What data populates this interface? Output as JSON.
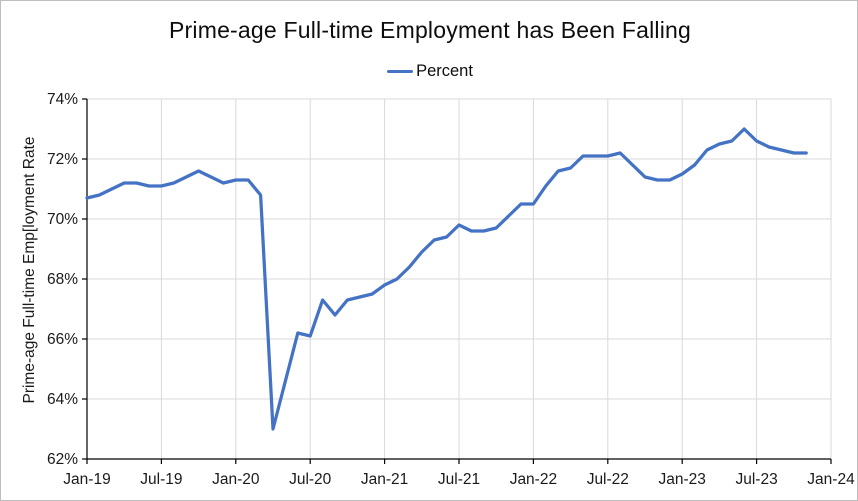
{
  "chart": {
    "title": "Prime-age Full-time Employment has Been Falling",
    "legend_label": "Percent"
  },
  "chart_data": {
    "type": "line",
    "title": "Prime-age Full-time Employment has Been Falling",
    "ylabel": "Prime-age Full-time Emp[loyment Rate",
    "xlabel": "",
    "legend": [
      "Percent"
    ],
    "legend_position": "top",
    "grid": true,
    "ylim": [
      62,
      74
    ],
    "y_tick_labels": [
      "62%",
      "64%",
      "66%",
      "68%",
      "70%",
      "72%",
      "74%"
    ],
    "y_tick_values": [
      62,
      64,
      66,
      68,
      70,
      72,
      74
    ],
    "x_tick_labels": [
      "Jan-19",
      "Jul-19",
      "Jan-20",
      "Jul-20",
      "Jan-21",
      "Jul-21",
      "Jan-22",
      "Jul-22",
      "Jan-23",
      "Jul-23",
      "Jan-24"
    ],
    "x_tick_month_index": [
      0,
      6,
      12,
      18,
      24,
      30,
      36,
      42,
      48,
      54,
      60
    ],
    "x_axis_span_months": 60,
    "x": [
      "Jan-19",
      "Feb-19",
      "Mar-19",
      "Apr-19",
      "May-19",
      "Jun-19",
      "Jul-19",
      "Aug-19",
      "Sep-19",
      "Oct-19",
      "Nov-19",
      "Dec-19",
      "Jan-20",
      "Feb-20",
      "Mar-20",
      "Apr-20",
      "May-20",
      "Jun-20",
      "Jul-20",
      "Aug-20",
      "Sep-20",
      "Oct-20",
      "Nov-20",
      "Dec-20",
      "Jan-21",
      "Feb-21",
      "Mar-21",
      "Apr-21",
      "May-21",
      "Jun-21",
      "Jul-21",
      "Aug-21",
      "Sep-21",
      "Oct-21",
      "Nov-21",
      "Dec-21",
      "Jan-22",
      "Feb-22",
      "Mar-22",
      "Apr-22",
      "May-22",
      "Jun-22",
      "Jul-22",
      "Aug-22",
      "Sep-22",
      "Oct-22",
      "Nov-22",
      "Dec-22",
      "Jan-23",
      "Feb-23",
      "Mar-23",
      "Apr-23",
      "May-23",
      "Jun-23",
      "Jul-23",
      "Aug-23",
      "Sep-23",
      "Oct-23",
      "Nov-23"
    ],
    "series": [
      {
        "name": "Percent",
        "values": [
          70.7,
          70.8,
          71.0,
          71.2,
          71.2,
          71.1,
          71.1,
          71.2,
          71.4,
          71.6,
          71.4,
          71.2,
          71.3,
          71.3,
          70.8,
          63.0,
          64.6,
          66.2,
          66.1,
          67.3,
          66.8,
          67.3,
          67.4,
          67.5,
          67.8,
          68.0,
          68.4,
          68.9,
          69.3,
          69.4,
          69.8,
          69.6,
          69.6,
          69.7,
          70.1,
          70.5,
          70.5,
          71.1,
          71.6,
          71.7,
          72.1,
          72.1,
          72.1,
          72.2,
          71.8,
          71.4,
          71.3,
          71.3,
          71.5,
          71.8,
          72.3,
          72.5,
          72.6,
          73.0,
          72.6,
          72.4,
          72.3,
          72.2,
          72.2
        ]
      }
    ],
    "colors": {
      "line": "#4472C4",
      "gridline": "#D9D9D9",
      "axis": "#000000",
      "text": "#1a1a1a",
      "background": "#ffffff"
    }
  }
}
